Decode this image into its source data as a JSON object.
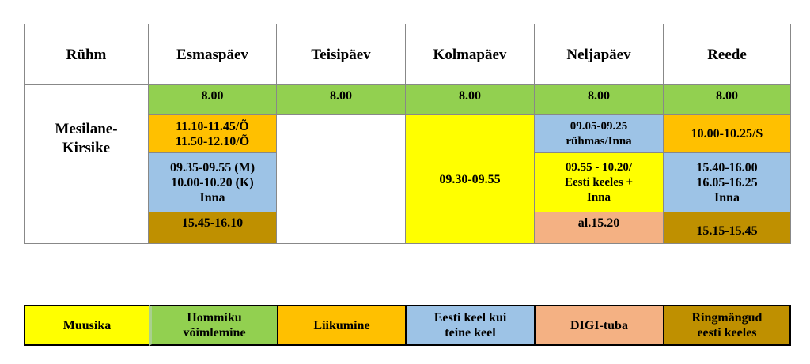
{
  "table": {
    "headers": [
      "Rühm",
      "Esmaspäev",
      "Teisipäev",
      "Kolmapäev",
      "Neljapäev",
      "Reede"
    ],
    "group": "Mesilane-\nKirsike",
    "columns": [
      [
        "8.00",
        "11.10-11.45/Õ\n11.50-12.10/Õ",
        "09.35-09.55 (M)\n10.00-10.20 (K)\nInna",
        "15.45-16.10"
      ],
      [
        "8.00"
      ],
      [
        "8.00",
        "09.30-09.55"
      ],
      [
        "8.00",
        "09.05-09.25\nrühmas/Inna",
        "09.55 - 10.20/\nEesti keeles +\nInna",
        "al.15.20"
      ],
      [
        "8.00",
        "10.00-10.25/S",
        "15.40-16.00\n16.05-16.25\nInna",
        "15.15-15.45"
      ]
    ]
  },
  "legend": [
    "Muusika",
    "Hommiku\nvõimlemine",
    "Liikumine",
    "Eesti keel kui\nteine keel",
    "DIGI-tuba",
    "Ringmängud\neesti keeles"
  ]
}
